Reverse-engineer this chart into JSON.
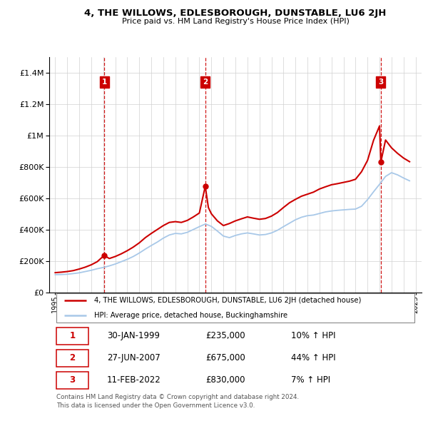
{
  "title": "4, THE WILLOWS, EDLESBOROUGH, DUNSTABLE, LU6 2JH",
  "subtitle": "Price paid vs. HM Land Registry's House Price Index (HPI)",
  "legend_label_red": "4, THE WILLOWS, EDLESBOROUGH, DUNSTABLE, LU6 2JH (detached house)",
  "legend_label_blue": "HPI: Average price, detached house, Buckinghamshire",
  "footer": "Contains HM Land Registry data © Crown copyright and database right 2024.\nThis data is licensed under the Open Government Licence v3.0.",
  "sales": [
    {
      "label": "1",
      "date_num": 1999.08,
      "price": 235000
    },
    {
      "label": "2",
      "date_num": 2007.49,
      "price": 675000
    },
    {
      "label": "3",
      "date_num": 2022.11,
      "price": 830000
    }
  ],
  "table_rows": [
    [
      "1",
      "30-JAN-1999",
      "£235,000",
      "10% ↑ HPI"
    ],
    [
      "2",
      "27-JUN-2007",
      "£675,000",
      "44% ↑ HPI"
    ],
    [
      "3",
      "11-FEB-2022",
      "£830,000",
      "7% ↑ HPI"
    ]
  ],
  "hpi_color": "#a8c8e8",
  "price_color": "#cc0000",
  "marker_box_color": "#cc0000",
  "ylim": [
    0,
    1500000
  ],
  "yticks": [
    0,
    200000,
    400000,
    600000,
    800000,
    1000000,
    1200000,
    1400000
  ],
  "xlim_start": 1994.5,
  "xlim_end": 2025.5,
  "hpi_data_years": [
    1995.0,
    1995.5,
    1996.0,
    1996.5,
    1997.0,
    1997.5,
    1998.0,
    1998.5,
    1999.0,
    1999.5,
    2000.0,
    2000.5,
    2001.0,
    2001.5,
    2002.0,
    2002.5,
    2003.0,
    2003.5,
    2004.0,
    2004.5,
    2005.0,
    2005.5,
    2006.0,
    2006.5,
    2007.0,
    2007.5,
    2008.0,
    2008.5,
    2009.0,
    2009.5,
    2010.0,
    2010.5,
    2011.0,
    2011.5,
    2012.0,
    2012.5,
    2013.0,
    2013.5,
    2014.0,
    2014.5,
    2015.0,
    2015.5,
    2016.0,
    2016.5,
    2017.0,
    2017.5,
    2018.0,
    2018.5,
    2019.0,
    2019.5,
    2020.0,
    2020.5,
    2021.0,
    2021.5,
    2022.0,
    2022.5,
    2023.0,
    2023.5,
    2024.0,
    2024.5
  ],
  "hpi_data_values": [
    112000,
    113000,
    115000,
    119000,
    124000,
    132000,
    140000,
    150000,
    158000,
    168000,
    180000,
    195000,
    210000,
    228000,
    250000,
    275000,
    298000,
    320000,
    345000,
    365000,
    375000,
    372000,
    382000,
    400000,
    418000,
    435000,
    420000,
    390000,
    358000,
    348000,
    362000,
    372000,
    378000,
    372000,
    365000,
    368000,
    378000,
    395000,
    418000,
    440000,
    462000,
    478000,
    488000,
    492000,
    502000,
    512000,
    518000,
    522000,
    525000,
    528000,
    530000,
    548000,
    590000,
    640000,
    688000,
    738000,
    762000,
    748000,
    728000,
    710000
  ],
  "price_data_years": [
    1995.0,
    1995.5,
    1996.0,
    1996.5,
    1997.0,
    1997.5,
    1998.0,
    1998.5,
    1999.08,
    1999.5,
    2000.0,
    2000.5,
    2001.0,
    2001.5,
    2002.0,
    2002.5,
    2003.0,
    2003.5,
    2004.0,
    2004.5,
    2005.0,
    2005.5,
    2006.0,
    2006.5,
    2007.0,
    2007.49,
    2007.75,
    2008.0,
    2008.5,
    2009.0,
    2009.5,
    2010.0,
    2010.5,
    2011.0,
    2011.5,
    2012.0,
    2012.5,
    2013.0,
    2013.5,
    2014.0,
    2014.5,
    2015.0,
    2015.5,
    2016.0,
    2016.5,
    2017.0,
    2017.5,
    2018.0,
    2018.5,
    2019.0,
    2019.5,
    2020.0,
    2020.5,
    2021.0,
    2021.5,
    2022.0,
    2022.11,
    2022.5,
    2023.0,
    2023.5,
    2024.0,
    2024.5
  ],
  "price_data_values": [
    125000,
    128000,
    132000,
    138000,
    148000,
    160000,
    175000,
    195000,
    235000,
    215000,
    228000,
    245000,
    265000,
    288000,
    315000,
    348000,
    375000,
    400000,
    425000,
    445000,
    450000,
    445000,
    458000,
    480000,
    505000,
    675000,
    540000,
    500000,
    455000,
    425000,
    438000,
    455000,
    468000,
    480000,
    472000,
    465000,
    470000,
    485000,
    508000,
    540000,
    570000,
    592000,
    612000,
    625000,
    638000,
    658000,
    672000,
    685000,
    692000,
    700000,
    708000,
    720000,
    768000,
    840000,
    968000,
    1060000,
    830000,
    970000,
    920000,
    885000,
    855000,
    832000
  ]
}
